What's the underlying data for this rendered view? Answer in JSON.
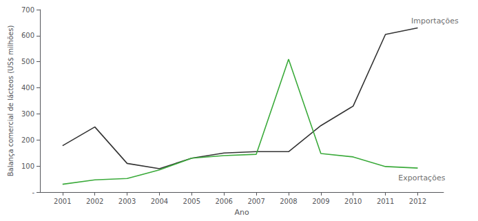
{
  "chart_data": {
    "type": "line",
    "x": [
      2001,
      2002,
      2003,
      2004,
      2005,
      2006,
      2007,
      2008,
      2009,
      2010,
      2011,
      2012
    ],
    "series": [
      {
        "color": "#333333",
        "line_style": "solid",
        "values": [
          178,
          250,
          110,
          90,
          130,
          150,
          155,
          155,
          255,
          330,
          605,
          630
        ]
      },
      {
        "color": "#3aaa3a",
        "line_style": "solid",
        "values": [
          30,
          47,
          52,
          85,
          130,
          140,
          145,
          510,
          148,
          135,
          98,
          92
        ]
      }
    ],
    "xlabel": "Ano",
    "ylabel": "Balança comercial de lácteos (US$ milhões)",
    "xlim": [
      2000.3,
      2012.8
    ],
    "xticks": [
      2001,
      2002,
      2003,
      2004,
      2005,
      2006,
      2007,
      2008,
      2009,
      2010,
      2011,
      2012
    ],
    "ylim": [
      0,
      700
    ],
    "yticks": [
      {
        "value": 0,
        "label": "-"
      },
      100,
      200,
      300,
      400,
      500,
      600,
      700
    ],
    "grid": false,
    "annotations": [
      {
        "text": "Importações",
        "x": 2011.8,
        "y": 670
      },
      {
        "text": "Exportações",
        "x": 2011.4,
        "y": 68
      }
    ]
  }
}
